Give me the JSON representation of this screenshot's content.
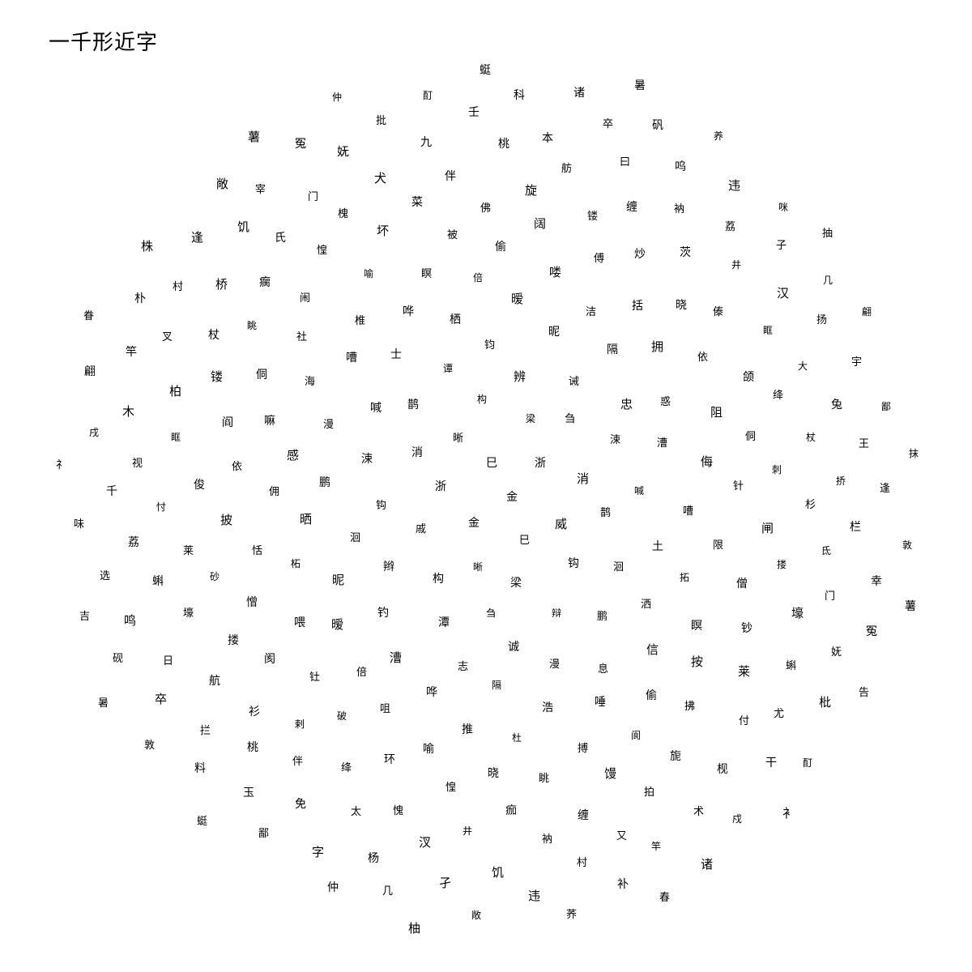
{
  "page": {
    "title": "一千形近字"
  },
  "glyphs": [
    "金",
    "金",
    "巳",
    "巳",
    "浙",
    "浙",
    "晰",
    "晰",
    "威",
    "戚",
    "梁",
    "梁",
    "消",
    "消",
    "构",
    "构",
    "钩",
    "钩",
    "刍",
    "刍",
    "鹊",
    "鹊",
    "辫",
    "辨",
    "辩",
    "涑",
    "涑",
    "潭",
    "谭",
    "洄",
    "洄",
    "诫",
    "诚",
    "喊",
    "喊",
    "钓",
    "钧",
    "鹏",
    "鹏",
    "忠",
    "志",
    "士",
    "土",
    "昵",
    "昵",
    "漫",
    "漫",
    "漕",
    "漕",
    "栖",
    "洒",
    "晒",
    "隔",
    "隔",
    "嘈",
    "嘈",
    "暧",
    "暧",
    "息",
    "感",
    "惑",
    "哗",
    "哗",
    "拓",
    "柘",
    "洁",
    "浩",
    "海",
    "侮",
    "倍",
    "倍",
    "信",
    "佣",
    "拥",
    "推",
    "椎",
    "限",
    "喂",
    "喽",
    "唾",
    "嘛",
    "阻",
    "咀",
    "瞑",
    "瞑",
    "恬",
    "括",
    "杜",
    "社",
    "针",
    "钍",
    "偷",
    "偷",
    "依",
    "依",
    "喻",
    "喻",
    "僧",
    "憎",
    "傅",
    "搏",
    "侗",
    "侗",
    "破",
    "被",
    "按",
    "披",
    "晓",
    "晓",
    "闹",
    "闸",
    "阂",
    "阔",
    "阆",
    "阎",
    "颌",
    "环",
    "坏",
    "钞",
    "砂",
    "炒",
    "眺",
    "眺",
    "刺",
    "剌",
    "佛",
    "拂",
    "俊",
    "傣",
    "惶",
    "惶",
    "搂",
    "搂",
    "镂",
    "馒",
    "镂",
    "绛",
    "绛",
    "菜",
    "莱",
    "莱",
    "茨",
    "痂",
    "瘸",
    "杉",
    "衫",
    "旋",
    "旎",
    "眶",
    "眶",
    "愧",
    "槐",
    "壕",
    "壕",
    "缠",
    "缠",
    "杖",
    "杖",
    "伴",
    "伴",
    "付",
    "忖",
    "井",
    "井",
    "氏",
    "氐",
    "航",
    "舫",
    "拍",
    "柏",
    "大",
    "太",
    "犬",
    "蝌",
    "蝌",
    "衲",
    "衲",
    "桥",
    "挢",
    "桃",
    "桃",
    "枧",
    "视",
    "汉",
    "汊",
    "门",
    "门",
    "日",
    "曰",
    "又",
    "叉",
    "兔",
    "免",
    "九",
    "尤",
    "荔",
    "荔",
    "饥",
    "饥",
    "栏",
    "拦",
    "本",
    "术",
    "木",
    "扬",
    "杨",
    "妩",
    "妩",
    "鸣",
    "呜",
    "村",
    "村",
    "王",
    "玉",
    "壬",
    "干",
    "千",
    "子",
    "孑",
    "宰",
    "幸",
    "卒",
    "卒",
    "竿",
    "竿",
    "宇",
    "字",
    "批",
    "枇",
    "选",
    "违",
    "违",
    "逢",
    "逢",
    "料",
    "科",
    "戍",
    "戌",
    "几",
    "几",
    "冤",
    "冤",
    "砚",
    "矾",
    "补",
    "朴",
    "鄙",
    "鄙",
    "酊",
    "酊",
    "味",
    "咪",
    "敞",
    "敞",
    "敦",
    "敦",
    "诸",
    "诸",
    "翩",
    "翩",
    "仲",
    "仲",
    "告",
    "吉",
    "养",
    "荞",
    "株",
    "抹",
    "蜓",
    "蜓",
    "衤",
    "礻",
    "抽",
    "柚",
    "薯",
    "薯",
    "暑",
    "暑",
    "春",
    "眷"
  ],
  "colors": {
    "background": "#ffffff",
    "text": "#000000"
  }
}
